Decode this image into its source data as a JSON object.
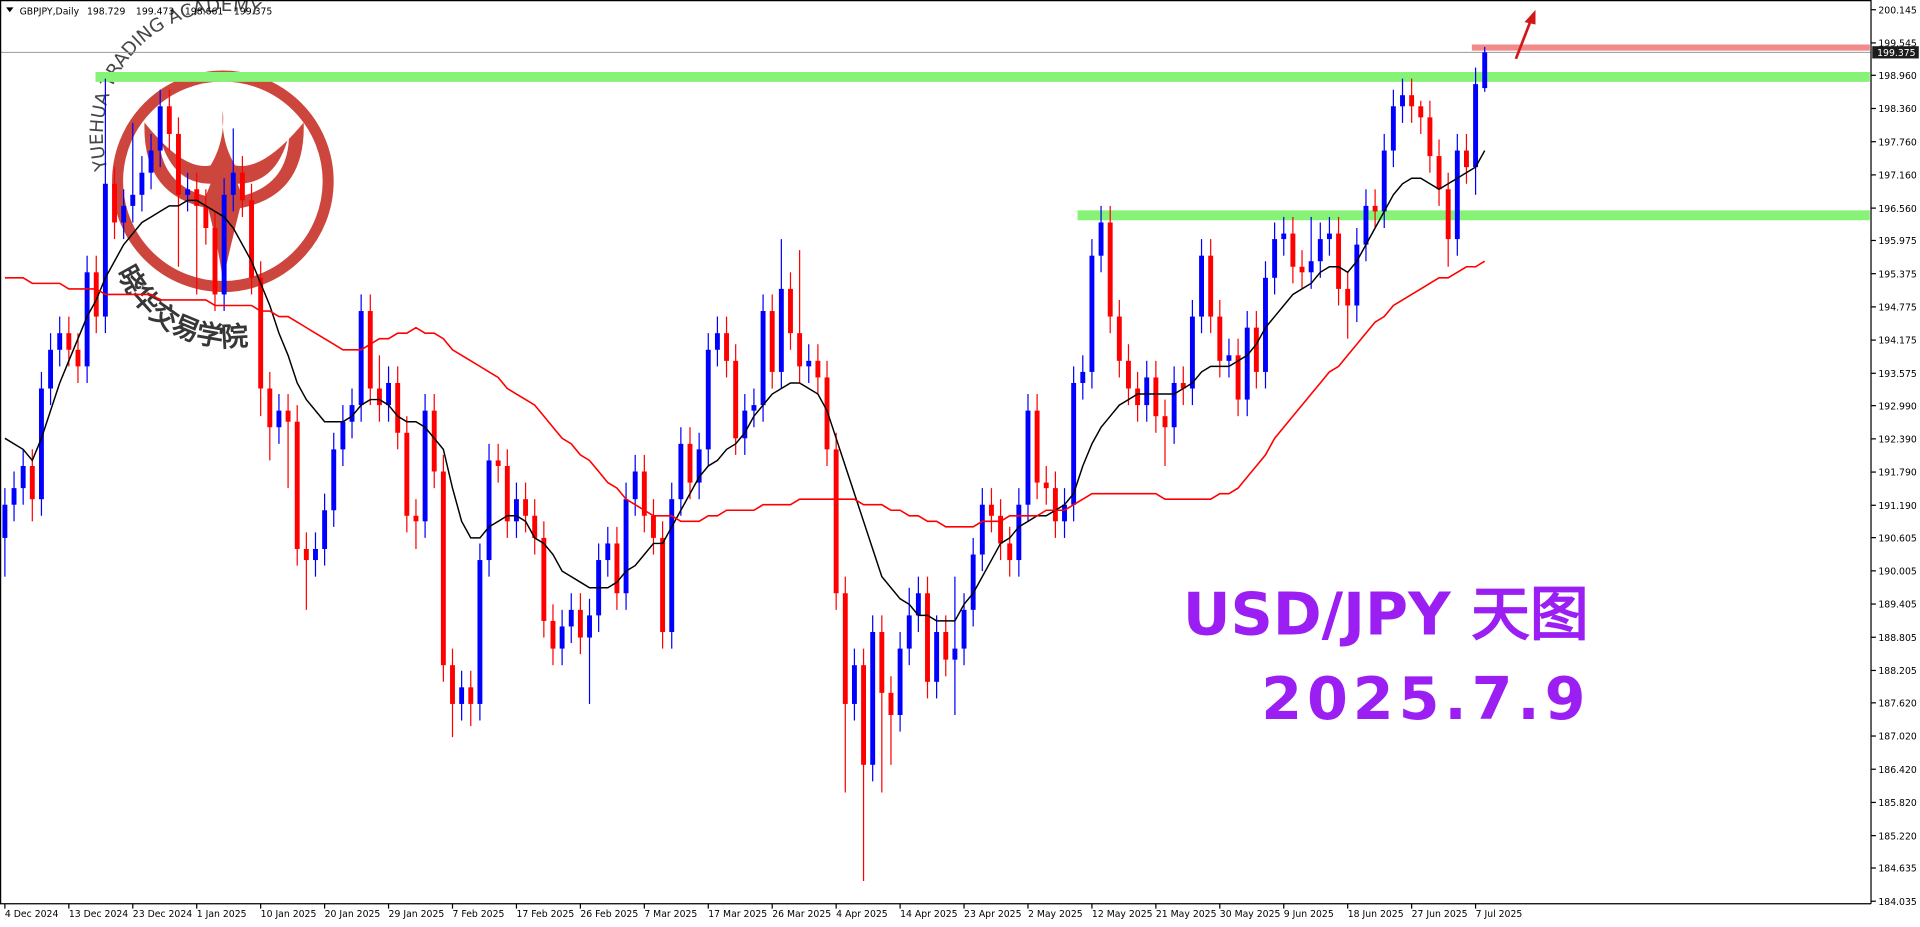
{
  "chart_data": {
    "type": "candlestick",
    "symbol": "GBPJPY,Daily",
    "annotations": [
      "USD/JPY 天图",
      "2025.7.9"
    ],
    "watermark": {
      "text_en": "YUEHUA TRADING ACADEMY",
      "text_cn": "晓华交易学院"
    },
    "ylim": [
      183.99,
      200.32
    ],
    "yticks": [
      200.145,
      199.545,
      {
        "value": 198.96,
        "label": "198.960"
      },
      {
        "value": 198.36,
        "label": "198.360"
      },
      {
        "value": 197.76,
        "label": "197.760"
      },
      {
        "value": 197.16,
        "label": "197.160"
      },
      {
        "value": 196.56,
        "label": "196.560"
      },
      195.975,
      195.375,
      194.775,
      194.175,
      193.575,
      {
        "value": 192.99,
        "label": "192.990"
      },
      {
        "value": 192.39,
        "label": "192.390"
      },
      {
        "value": 191.79,
        "label": "191.790"
      },
      {
        "value": 191.19,
        "label": "191.190"
      },
      190.605,
      190.005,
      189.405,
      188.805,
      188.205,
      {
        "value": 187.62,
        "label": "187.620"
      },
      {
        "value": 187.02,
        "label": "187.020"
      },
      {
        "value": 186.42,
        "label": "186.420"
      },
      {
        "value": 185.82,
        "label": "185.820"
      },
      {
        "value": 185.22,
        "label": "185.220"
      },
      184.635,
      184.035
    ],
    "categories": [
      "4 Dec 2024",
      null,
      null,
      null,
      null,
      null,
      null,
      "13 Dec 2024",
      null,
      null,
      null,
      null,
      null,
      null,
      "23 Dec 2024",
      null,
      null,
      null,
      null,
      null,
      null,
      "1 Jan 2025",
      null,
      null,
      null,
      null,
      null,
      null,
      "10 Jan 2025",
      null,
      null,
      null,
      null,
      null,
      null,
      "20 Jan 2025",
      null,
      null,
      null,
      null,
      null,
      null,
      "29 Jan 2025",
      null,
      null,
      null,
      null,
      null,
      null,
      "7 Feb 2025",
      null,
      null,
      null,
      null,
      null,
      null,
      "17 Feb 2025",
      null,
      null,
      null,
      null,
      null,
      null,
      "26 Feb 2025",
      null,
      null,
      null,
      null,
      null,
      null,
      "7 Mar 2025",
      null,
      null,
      null,
      null,
      null,
      null,
      "17 Mar 2025",
      null,
      null,
      null,
      null,
      null,
      null,
      "26 Mar 2025",
      null,
      null,
      null,
      null,
      null,
      null,
      "4 Apr 2025",
      null,
      null,
      null,
      null,
      null,
      null,
      "14 Apr 2025",
      null,
      null,
      null,
      null,
      null,
      null,
      "23 Apr 2025",
      null,
      null,
      null,
      null,
      null,
      null,
      "2 May 2025",
      null,
      null,
      null,
      null,
      null,
      null,
      "12 May 2025",
      null,
      null,
      null,
      null,
      null,
      null,
      "21 May 2025",
      null,
      null,
      null,
      null,
      null,
      null,
      "30 May 2025",
      null,
      null,
      null,
      null,
      null,
      null,
      "9 Jun 2025",
      null,
      null,
      null,
      null,
      null,
      null,
      "18 Jun 2025",
      null,
      null,
      null,
      null,
      null,
      null,
      "27 Jun 2025",
      null,
      null,
      null,
      null,
      null,
      null,
      "7 Jul 2025",
      null
    ],
    "open": [
      190.6,
      191.2,
      191.5,
      191.9,
      191.3,
      193.3,
      194.0,
      194.3,
      194.0,
      193.7,
      195.4,
      194.6,
      197.0,
      196.3,
      196.6,
      196.8,
      197.2,
      197.6,
      198.4,
      197.9,
      196.8,
      196.9,
      196.6,
      196.2,
      195.0,
      196.8,
      197.2,
      196.7,
      195.3,
      193.3,
      192.6,
      192.9,
      192.7,
      190.4,
      190.2,
      190.4,
      191.1,
      192.2,
      192.7,
      193.0,
      194.7,
      193.3,
      193.0,
      193.4,
      192.5,
      191.0,
      190.9,
      192.9,
      191.8,
      188.3,
      187.6,
      187.9,
      187.6,
      190.2,
      192.0,
      191.9,
      190.9,
      191.3,
      191.0,
      190.6,
      189.1,
      188.6,
      189.0,
      189.3,
      188.8,
      189.2,
      190.2,
      190.5,
      189.6,
      191.3,
      191.8,
      191.0,
      190.6,
      188.9,
      191.3,
      192.3,
      191.6,
      192.2,
      194.0,
      194.3,
      193.8,
      192.4,
      192.9,
      193.0,
      194.7,
      193.6,
      195.1,
      194.3,
      193.7,
      193.8,
      193.5,
      192.2,
      189.6,
      187.6,
      188.3,
      186.5,
      188.9,
      187.8,
      187.4,
      188.6,
      189.2,
      189.6,
      188.0,
      188.9,
      188.4,
      188.6,
      189.3,
      190.3,
      191.2,
      191.0,
      190.5,
      190.2,
      191.2,
      192.9,
      191.6,
      191.5,
      190.9,
      191.2,
      193.4,
      193.6,
      195.7,
      196.3,
      194.6,
      193.8,
      193.3,
      193.0,
      193.5,
      192.8,
      192.6,
      193.4,
      193.3,
      194.6,
      195.7,
      194.6,
      193.8,
      193.9,
      193.1,
      194.4,
      193.6,
      195.3,
      196.0,
      196.1,
      195.5,
      195.4,
      195.6,
      196.0,
      196.1,
      195.1,
      194.8,
      195.9,
      196.6,
      196.5,
      197.6,
      198.4,
      198.6,
      198.4,
      198.2,
      197.5,
      196.9,
      196.0,
      197.6,
      197.3,
      198.729
    ],
    "high": [
      191.5,
      191.8,
      192.2,
      192.2,
      193.6,
      194.3,
      194.6,
      194.6,
      194.3,
      195.7,
      195.7,
      198.9,
      197.3,
      196.9,
      198.1,
      197.5,
      197.9,
      198.7,
      198.7,
      198.2,
      197.2,
      197.2,
      196.9,
      196.5,
      197.1,
      198.0,
      197.5,
      197.0,
      195.6,
      193.6,
      193.2,
      193.2,
      193.0,
      190.7,
      190.7,
      191.4,
      192.5,
      193.0,
      193.3,
      195.0,
      195.0,
      193.9,
      193.7,
      193.7,
      192.8,
      191.3,
      193.2,
      193.2,
      192.1,
      188.6,
      188.2,
      188.2,
      190.5,
      192.3,
      192.3,
      192.2,
      191.6,
      191.6,
      191.3,
      190.9,
      189.4,
      189.3,
      189.6,
      189.6,
      189.5,
      190.5,
      190.8,
      190.8,
      191.6,
      192.1,
      192.1,
      191.3,
      190.9,
      191.6,
      192.6,
      192.6,
      192.5,
      194.3,
      194.6,
      194.6,
      194.1,
      193.2,
      193.3,
      195.0,
      195.0,
      196.0,
      195.4,
      195.8,
      194.1,
      194.1,
      193.8,
      192.5,
      189.9,
      188.6,
      188.6,
      189.2,
      189.2,
      188.1,
      188.9,
      189.7,
      189.9,
      189.9,
      189.2,
      189.2,
      189.9,
      189.6,
      190.6,
      191.5,
      191.5,
      191.3,
      190.8,
      191.5,
      193.2,
      193.2,
      191.9,
      191.8,
      191.5,
      193.7,
      193.9,
      196.0,
      196.6,
      196.6,
      194.9,
      194.1,
      193.6,
      193.8,
      193.8,
      193.1,
      193.7,
      193.7,
      194.9,
      196.0,
      196.0,
      194.9,
      194.2,
      194.2,
      194.7,
      194.7,
      195.6,
      196.3,
      196.4,
      196.4,
      195.8,
      196.4,
      196.3,
      196.4,
      196.4,
      195.4,
      196.2,
      196.9,
      196.9,
      197.9,
      198.7,
      198.9,
      198.9,
      198.5,
      198.5,
      197.8,
      197.2,
      197.9,
      197.9,
      199.1,
      199.473
    ],
    "low": [
      189.9,
      190.9,
      191.2,
      190.9,
      191.0,
      193.0,
      193.7,
      193.7,
      193.4,
      193.4,
      194.3,
      194.3,
      196.0,
      196.0,
      196.3,
      196.5,
      196.9,
      197.3,
      197.6,
      195.5,
      196.5,
      195.0,
      195.9,
      194.7,
      194.7,
      196.5,
      196.4,
      195.0,
      192.8,
      192.0,
      192.3,
      191.5,
      190.1,
      189.3,
      189.9,
      190.1,
      190.8,
      191.9,
      192.4,
      192.7,
      193.0,
      192.7,
      192.7,
      192.2,
      190.7,
      190.4,
      190.6,
      191.5,
      188.0,
      187.0,
      187.3,
      187.2,
      187.3,
      189.9,
      191.6,
      190.6,
      190.6,
      190.7,
      190.3,
      188.8,
      188.3,
      188.3,
      188.7,
      188.5,
      187.6,
      188.9,
      189.9,
      189.3,
      189.3,
      191.0,
      190.7,
      190.3,
      188.6,
      188.6,
      191.0,
      191.3,
      191.3,
      191.9,
      193.7,
      193.5,
      192.1,
      192.1,
      192.6,
      192.7,
      193.3,
      193.3,
      194.0,
      193.4,
      193.4,
      193.2,
      191.9,
      189.3,
      186.0,
      187.3,
      184.4,
      186.2,
      186.0,
      186.5,
      187.1,
      188.3,
      188.9,
      187.7,
      187.7,
      188.1,
      187.4,
      188.3,
      189.0,
      190.0,
      190.7,
      190.2,
      189.9,
      189.9,
      190.9,
      191.3,
      191.2,
      190.6,
      190.6,
      190.9,
      193.1,
      193.3,
      195.4,
      194.3,
      193.5,
      193.0,
      192.7,
      192.7,
      192.5,
      191.9,
      192.3,
      193.0,
      193.0,
      194.3,
      194.3,
      193.5,
      193.5,
      192.8,
      192.8,
      193.3,
      193.3,
      195.0,
      195.7,
      195.2,
      195.1,
      195.1,
      195.3,
      195.7,
      194.8,
      194.2,
      194.5,
      195.6,
      196.2,
      196.2,
      197.3,
      198.1,
      198.1,
      197.9,
      197.2,
      196.6,
      195.5,
      195.7,
      197.0,
      196.8,
      198.661
    ],
    "close": [
      191.2,
      191.5,
      191.9,
      191.3,
      193.3,
      194.0,
      194.3,
      194.0,
      193.7,
      195.4,
      194.6,
      197.0,
      196.3,
      196.6,
      196.8,
      197.2,
      197.6,
      198.4,
      197.9,
      196.8,
      196.9,
      196.6,
      196.2,
      195.0,
      196.8,
      197.2,
      196.7,
      195.3,
      193.3,
      192.6,
      192.9,
      192.7,
      190.4,
      190.2,
      190.4,
      191.1,
      192.2,
      192.7,
      193.0,
      194.7,
      193.3,
      193.0,
      193.4,
      192.5,
      191.0,
      190.9,
      192.9,
      191.8,
      188.3,
      187.6,
      187.9,
      187.6,
      190.2,
      192.0,
      191.9,
      190.9,
      191.3,
      191.0,
      190.6,
      189.1,
      188.6,
      189.0,
      189.3,
      188.8,
      189.2,
      190.2,
      190.5,
      189.6,
      191.3,
      191.8,
      191.0,
      190.6,
      188.9,
      191.3,
      192.3,
      191.6,
      192.2,
      194.0,
      194.3,
      193.8,
      192.4,
      192.9,
      193.0,
      194.7,
      193.6,
      195.1,
      194.3,
      193.7,
      193.8,
      193.5,
      192.2,
      189.6,
      187.6,
      188.3,
      186.5,
      188.9,
      187.8,
      187.4,
      188.6,
      189.2,
      189.6,
      188.0,
      188.9,
      188.4,
      188.6,
      189.3,
      190.3,
      191.2,
      191.0,
      190.5,
      190.2,
      191.2,
      192.9,
      191.6,
      191.5,
      190.9,
      191.2,
      193.4,
      193.6,
      195.7,
      196.3,
      194.6,
      193.8,
      193.3,
      193.0,
      193.5,
      192.8,
      192.6,
      193.4,
      193.3,
      194.6,
      195.7,
      194.6,
      193.8,
      193.9,
      193.1,
      194.4,
      193.6,
      195.3,
      196.0,
      196.1,
      195.5,
      195.4,
      195.6,
      196.0,
      196.1,
      195.1,
      194.8,
      195.9,
      196.6,
      196.5,
      197.6,
      198.4,
      198.6,
      198.4,
      198.2,
      197.5,
      196.9,
      196.0,
      197.6,
      197.3,
      198.8,
      199.375
    ],
    "ma_fast": [
      192.4,
      192.3,
      192.2,
      192.0,
      192.4,
      192.9,
      193.4,
      193.8,
      194.2,
      194.6,
      194.9,
      195.3,
      195.6,
      195.9,
      196.1,
      196.3,
      196.4,
      196.5,
      196.6,
      196.6,
      196.7,
      196.7,
      196.6,
      196.5,
      196.4,
      196.2,
      195.9,
      195.6,
      195.2,
      194.8,
      194.3,
      193.9,
      193.4,
      193.1,
      192.9,
      192.7,
      192.7,
      192.7,
      192.8,
      193.0,
      193.1,
      193.1,
      193.0,
      192.8,
      192.7,
      192.7,
      192.6,
      192.4,
      192.2,
      191.5,
      190.9,
      190.6,
      190.6,
      190.8,
      190.9,
      191.0,
      191.0,
      190.9,
      190.6,
      190.5,
      190.3,
      190.0,
      189.9,
      189.8,
      189.7,
      189.7,
      189.7,
      189.8,
      190.0,
      190.1,
      190.3,
      190.5,
      190.5,
      190.8,
      191.1,
      191.4,
      191.7,
      191.9,
      192.0,
      192.2,
      192.3,
      192.5,
      192.8,
      193.0,
      193.2,
      193.3,
      193.4,
      193.4,
      193.3,
      193.2,
      192.9,
      192.4,
      191.9,
      191.4,
      190.9,
      190.4,
      189.9,
      189.7,
      189.5,
      189.4,
      189.2,
      189.2,
      189.1,
      189.1,
      189.1,
      189.4,
      189.6,
      189.9,
      190.2,
      190.5,
      190.6,
      190.8,
      190.9,
      191.0,
      191.0,
      191.1,
      191.2,
      191.4,
      191.9,
      192.3,
      192.6,
      192.8,
      193.0,
      193.1,
      193.2,
      193.2,
      193.2,
      193.2,
      193.2,
      193.3,
      193.4,
      193.6,
      193.7,
      193.7,
      193.7,
      193.8,
      193.9,
      194.1,
      194.4,
      194.6,
      194.8,
      195.0,
      195.1,
      195.2,
      195.4,
      195.5,
      195.5,
      195.4,
      195.6,
      195.9,
      196.2,
      196.5,
      196.8,
      197.0,
      197.1,
      197.1,
      197.0,
      196.9,
      197.0,
      197.1,
      197.2,
      197.3,
      197.6
    ],
    "ma_slow": [
      195.3,
      195.3,
      195.3,
      195.2,
      195.2,
      195.2,
      195.2,
      195.1,
      195.1,
      195.1,
      195.1,
      195.0,
      195.0,
      195.0,
      195.0,
      195.0,
      195.0,
      194.9,
      194.9,
      194.9,
      194.9,
      194.9,
      194.9,
      194.8,
      194.8,
      194.8,
      194.8,
      194.8,
      194.7,
      194.7,
      194.6,
      194.6,
      194.5,
      194.4,
      194.3,
      194.2,
      194.1,
      194.0,
      194.0,
      194.0,
      194.1,
      194.2,
      194.2,
      194.3,
      194.3,
      194.4,
      194.3,
      194.3,
      194.2,
      194.0,
      193.9,
      193.8,
      193.7,
      193.6,
      193.5,
      193.3,
      193.2,
      193.1,
      193.0,
      192.8,
      192.6,
      192.4,
      192.3,
      192.1,
      192.0,
      191.8,
      191.6,
      191.5,
      191.3,
      191.2,
      191.1,
      191.0,
      191.0,
      191.0,
      190.9,
      190.9,
      190.9,
      191.0,
      191.0,
      191.1,
      191.1,
      191.1,
      191.1,
      191.2,
      191.2,
      191.2,
      191.2,
      191.3,
      191.3,
      191.3,
      191.3,
      191.3,
      191.3,
      191.3,
      191.2,
      191.2,
      191.2,
      191.1,
      191.1,
      191.0,
      191.0,
      190.9,
      190.9,
      190.8,
      190.8,
      190.8,
      190.8,
      190.9,
      190.9,
      190.9,
      191.0,
      191.0,
      191.0,
      191.0,
      191.1,
      191.1,
      191.1,
      191.2,
      191.3,
      191.4,
      191.4,
      191.4,
      191.4,
      191.4,
      191.4,
      191.4,
      191.4,
      191.3,
      191.3,
      191.3,
      191.3,
      191.3,
      191.3,
      191.4,
      191.4,
      191.5,
      191.7,
      191.9,
      192.1,
      192.4,
      192.6,
      192.8,
      193.0,
      193.2,
      193.4,
      193.6,
      193.7,
      193.9,
      194.1,
      194.3,
      194.5,
      194.6,
      194.8,
      194.9,
      195.0,
      195.1,
      195.2,
      195.3,
      195.3,
      195.4,
      195.5,
      195.5,
      195.6
    ],
    "colors": {
      "up": "#0000ff",
      "down": "#ff0000",
      "ma_fast": "#000000",
      "ma_slow": "#ff0000"
    },
    "levels": [
      {
        "value": 198.93,
        "color": "#86f276"
      },
      {
        "value": 196.43,
        "color": "#86f276"
      },
      {
        "value": 199.46,
        "color": "#f28a8a"
      }
    ]
  }
}
